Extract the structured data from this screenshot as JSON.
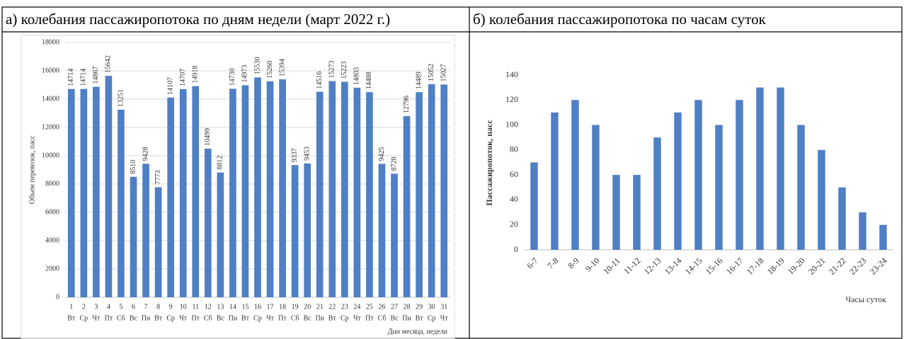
{
  "chart_data": [
    {
      "type": "bar",
      "title": "а) колебания пассажиропотока по дням недели (март 2022 г.)",
      "y_label": "Объем перевозок, пасс",
      "x_label": "Дни месяца, недели",
      "categories": [
        [
          "1",
          "Вт"
        ],
        [
          "2",
          "Ср"
        ],
        [
          "3",
          "Чт"
        ],
        [
          "4",
          "Пт"
        ],
        [
          "5",
          "Сб"
        ],
        [
          "6",
          "Вс"
        ],
        [
          "7",
          "Пн"
        ],
        [
          "8",
          "Вт"
        ],
        [
          "9",
          "Ср"
        ],
        [
          "10",
          "Чт"
        ],
        [
          "11",
          "Пт"
        ],
        [
          "12",
          "Сб"
        ],
        [
          "13",
          "Вс"
        ],
        [
          "14",
          "Пн"
        ],
        [
          "15",
          "Вт"
        ],
        [
          "16",
          "Ср"
        ],
        [
          "17",
          "Чт"
        ],
        [
          "18",
          "Пт"
        ],
        [
          "19",
          "Сб"
        ],
        [
          "20",
          "Вс"
        ],
        [
          "21",
          "Пн"
        ],
        [
          "22",
          "Вт"
        ],
        [
          "23",
          "Ср"
        ],
        [
          "24",
          "Чт"
        ],
        [
          "25",
          "Пт"
        ],
        [
          "26",
          "Сб"
        ],
        [
          "27",
          "Вс"
        ],
        [
          "28",
          "Пн"
        ],
        [
          "29",
          "Вт"
        ],
        [
          "30",
          "Ср"
        ],
        [
          "31",
          "Чт"
        ]
      ],
      "values": [
        14714,
        14714,
        14867,
        15642,
        13251,
        8510,
        9428,
        7773,
        14107,
        14707,
        14918,
        10499,
        8812,
        14730,
        14973,
        15530,
        15260,
        15394,
        9337,
        9453,
        14516,
        15273,
        15223,
        14803,
        14488,
        9425,
        8728,
        12796,
        14489,
        15052,
        15027
      ],
      "color": "#4f7fc4",
      "ylim": [
        0,
        18000
      ],
      "yticks": [
        0,
        2000,
        4000,
        6000,
        8000,
        10000,
        12000,
        14000,
        16000,
        18000
      ],
      "grid": true
    },
    {
      "type": "bar",
      "title": "б) колебания пассажиропотока по часам суток",
      "y_label": "Пассажиропоток, пасс",
      "x_label": "Часы суток",
      "categories": [
        "6-7",
        "7-8",
        "8-9",
        "9-10",
        "10-11",
        "11-12",
        "12-13",
        "13-14",
        "14-15",
        "15-16",
        "16-17",
        "17-18",
        "18-19",
        "19-20",
        "20-21",
        "21-22",
        "22-23",
        "23-24"
      ],
      "values": [
        70,
        110,
        120,
        100,
        60,
        60,
        90,
        110,
        120,
        100,
        120,
        130,
        130,
        100,
        80,
        50,
        30,
        20
      ],
      "color": "#4f7fc4",
      "ylim": [
        0,
        140
      ],
      "yticks": [
        0,
        20,
        40,
        60,
        80,
        100,
        120,
        140
      ],
      "grid": false
    }
  ]
}
